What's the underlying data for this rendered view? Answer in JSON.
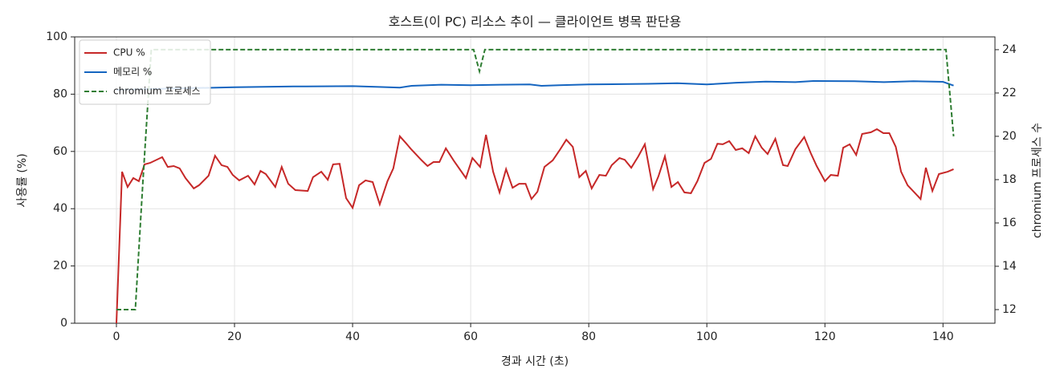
{
  "chart_data": {
    "type": "line",
    "title": "호스트(이 PC) 리소스 추이 — 클라이언트 병목 판단용",
    "xlabel": "경과 시간 (초)",
    "ylabel": "사용률 (%)",
    "y2label": "chromium 프로세스 수",
    "xlim": [
      -7.07,
      148.8
    ],
    "xticks": [
      0,
      20,
      40,
      60,
      80,
      100,
      120,
      140
    ],
    "ylim": [
      0,
      100
    ],
    "yticks": [
      0,
      20,
      40,
      60,
      80,
      100
    ],
    "y2lim": [
      11.37,
      24.59
    ],
    "y2ticks": [
      12,
      14,
      16,
      18,
      20,
      22,
      24
    ],
    "grid": true,
    "legend": "upper left",
    "series": [
      {
        "name": "CPU %",
        "color": "#c62828",
        "dash": false,
        "x": [
          0,
          0.95,
          1.9,
          2.86,
          3.8,
          4.76,
          5.7,
          7.76,
          8.7,
          9.7,
          10.7,
          11.7,
          13.1,
          14.0,
          15.6,
          16.7,
          17.8,
          18.8,
          19.7,
          20.8,
          22.3,
          23.4,
          24.4,
          25.3,
          26.9,
          28.0,
          29.1,
          30.3,
          32.4,
          33.3,
          34.7,
          35.8,
          36.7,
          37.8,
          38.9,
          40.0,
          41.1,
          42.2,
          43.4,
          44.6,
          45.9,
          46.9,
          48.0,
          49.0,
          49.9,
          51.7,
          52.7,
          53.7,
          54.7,
          55.8,
          57.1,
          59.2,
          60.3,
          61.6,
          62.6,
          63.8,
          64.9,
          66.0,
          67.1,
          68.2,
          69.3,
          70.3,
          71.3,
          72.5,
          73.9,
          75.1,
          76.2,
          77.3,
          78.4,
          79.5,
          80.5,
          81.8,
          82.9,
          83.9,
          85.2,
          86.1,
          87.2,
          88.4,
          89.5,
          90.9,
          91.8,
          92.9,
          94.0,
          95.1,
          96.2,
          97.3,
          98.4,
          99.6,
          100.7,
          101.8,
          102.7,
          103.8,
          104.9,
          106.0,
          107.1,
          108.2,
          109.3,
          110.3,
          111.6,
          112.9,
          113.7,
          115.0,
          116.5,
          117.6,
          118.6,
          120.0,
          121.0,
          122.2,
          123.1,
          124.2,
          125.3,
          126.3,
          127.8,
          128.8,
          129.9,
          130.9,
          132.0,
          132.9,
          134.0,
          136.2,
          137.1,
          138.2,
          139.3,
          140.8,
          141.8
        ],
        "values": [
          0,
          52.9,
          47.6,
          50.7,
          49.6,
          55.5,
          56.0,
          58.0,
          54.6,
          54.9,
          54.1,
          50.7,
          47.1,
          48.2,
          51.5,
          58.5,
          55.2,
          54.6,
          51.8,
          49.9,
          51.5,
          48.5,
          53.2,
          52.1,
          47.6,
          54.6,
          48.7,
          46.5,
          46.2,
          51.0,
          52.9,
          50.1,
          55.5,
          55.7,
          43.7,
          40.3,
          48.2,
          49.9,
          49.3,
          41.5,
          49.6,
          54.1,
          65.3,
          63.0,
          60.8,
          56.9,
          54.9,
          56.3,
          56.3,
          61.1,
          56.9,
          50.7,
          57.7,
          54.6,
          65.8,
          52.9,
          45.7,
          53.8,
          47.3,
          48.7,
          48.7,
          43.4,
          45.9,
          54.6,
          56.9,
          60.5,
          64.1,
          61.6,
          51.0,
          53.2,
          47.1,
          51.8,
          51.5,
          55.2,
          57.7,
          57.1,
          54.3,
          58.3,
          62.5,
          46.8,
          51.3,
          58.3,
          47.6,
          49.3,
          45.7,
          45.4,
          49.6,
          56.0,
          57.4,
          62.7,
          62.5,
          63.6,
          60.5,
          61.1,
          59.4,
          65.3,
          61.3,
          59.1,
          64.4,
          55.2,
          54.9,
          60.8,
          65.0,
          59.4,
          54.9,
          49.6,
          51.8,
          51.5,
          61.3,
          62.5,
          58.8,
          66.1,
          66.7,
          67.8,
          66.4,
          66.4,
          61.6,
          52.9,
          48.2,
          43.4,
          54.3,
          46.2,
          52.1,
          52.9,
          53.8
        ]
      },
      {
        "name": "메모리 %",
        "color": "#1565c0",
        "dash": false,
        "x": [
          0,
          10,
          20,
          30,
          40,
          45,
          48,
          50,
          55,
          60,
          65,
          70,
          72,
          75,
          80,
          90,
          95,
          100,
          105,
          110,
          115,
          118,
          125,
          130,
          135,
          140,
          141.8
        ],
        "values": [
          81.5,
          82,
          82.4,
          82.7,
          82.8,
          82.5,
          82.3,
          82.9,
          83.3,
          83.1,
          83.3,
          83.4,
          82.9,
          83.1,
          83.4,
          83.6,
          83.8,
          83.4,
          84,
          84.4,
          84.2,
          84.6,
          84.5,
          84.2,
          84.5,
          84.3,
          83.0
        ]
      },
      {
        "name": "chromium 프로세스",
        "color": "#2e7d32",
        "dash": true,
        "axis": "y2",
        "x": [
          0,
          3.2,
          4.5,
          5.2,
          5.9,
          60.5,
          61.5,
          62.4,
          140.5,
          141.8
        ],
        "values": [
          12,
          12,
          18,
          21,
          24,
          24,
          23,
          24,
          24,
          20
        ]
      }
    ]
  }
}
